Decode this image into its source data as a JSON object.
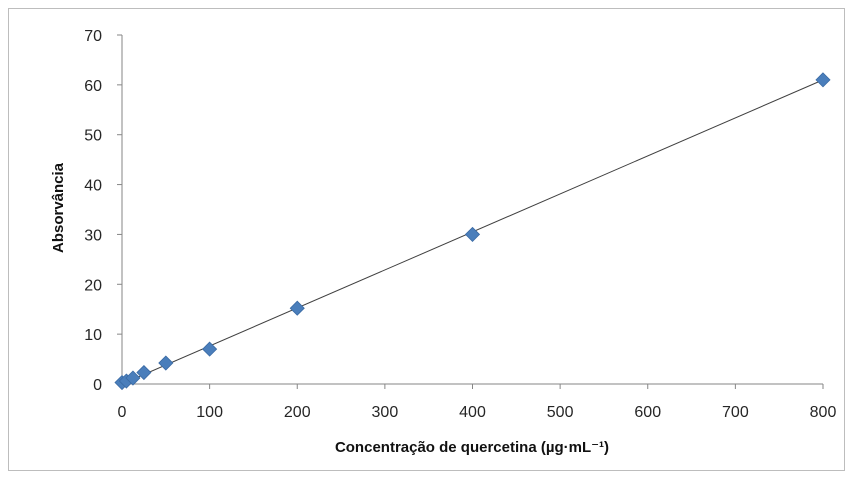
{
  "chart_data": {
    "type": "scatter",
    "title": "",
    "xlabel": "Concentração de quercetina (µg·mL⁻¹)",
    "ylabel": "Absorvância",
    "xlim": [
      0,
      800
    ],
    "ylim": [
      0,
      70
    ],
    "xticks": [
      0,
      100,
      200,
      300,
      400,
      500,
      600,
      700,
      800
    ],
    "yticks": [
      0,
      10,
      20,
      30,
      40,
      50,
      60,
      70
    ],
    "grid": false,
    "legend": "none",
    "series": [
      {
        "marker": "diamond",
        "color": "#4a7ebb",
        "x": [
          0,
          5,
          12.5,
          25,
          50,
          100,
          200,
          400,
          800
        ],
        "y": [
          0.3,
          0.6,
          1.2,
          2.3,
          4.2,
          7,
          15.2,
          30,
          61
        ]
      }
    ],
    "trendline": {
      "type": "linear",
      "color": "#404040",
      "x": [
        0,
        800
      ],
      "y": [
        0,
        61
      ]
    }
  }
}
